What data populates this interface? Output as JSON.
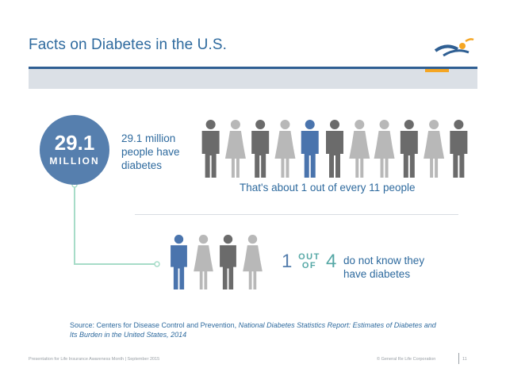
{
  "title": "Facts on Diabetes in the U.S.",
  "stat": {
    "number": "29.1",
    "unit": "MILLION",
    "description_line1": "29.1 million",
    "description_line2": "people have",
    "description_line3": "diabetes",
    "ratio_text": "That's about 1 out of every 11 people"
  },
  "people_row": [
    "dark",
    "light",
    "dark",
    "light",
    "blue",
    "dark",
    "light",
    "light",
    "dark",
    "light",
    "dark"
  ],
  "people_four": [
    "blue",
    "light",
    "dark",
    "light"
  ],
  "ratio": {
    "one": "1",
    "out": "OUT",
    "of": "OF",
    "four": "4",
    "line1": "do not know they",
    "line2": "have diabetes"
  },
  "source": {
    "prefix": "Source: Centers for Disease Control and Prevention, ",
    "italic": "National Diabetes Statistics Report: Estimates of Diabetes and Its Burden in the United States, 2014"
  },
  "footer": {
    "left": "Presentation for Life Insurance Awareness Month | September 2015",
    "right": "© General Re Life Corporation",
    "page": "11"
  },
  "colors": {
    "accent_blue": "#567fae",
    "title_blue": "#2e6a9e",
    "teal": "#56a8a6",
    "dark_person": "#6b6b6b",
    "light_person": "#b8b8b8",
    "blue_person": "#4a74ad",
    "orange": "#f5a623"
  }
}
